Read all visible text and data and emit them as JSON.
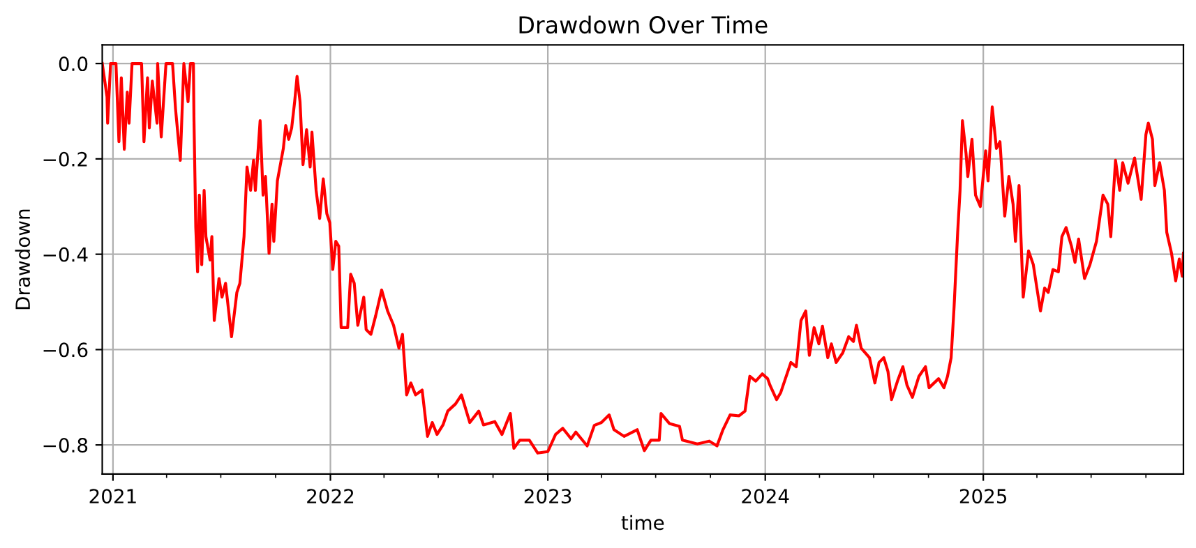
{
  "chart_data": {
    "type": "line",
    "title": "Drawdown Over Time",
    "xlabel": "time",
    "ylabel": "Drawdown",
    "x": [
      "2020-12-14",
      "2020-12-22",
      "2020-12-23",
      "2020-12-28",
      "2021-01-06",
      "2021-01-11",
      "2021-01-15",
      "2021-01-20",
      "2021-01-25",
      "2021-01-28",
      "2021-02-02",
      "2021-02-18",
      "2021-02-22",
      "2021-02-28",
      "2021-03-03",
      "2021-03-08",
      "2021-03-16",
      "2021-03-17",
      "2021-03-23",
      "2021-03-31",
      "2021-04-11",
      "2021-04-16",
      "2021-04-24",
      "2021-04-30",
      "2021-05-07",
      "2021-05-11",
      "2021-05-16",
      "2021-05-17",
      "2021-05-20",
      "2021-05-23",
      "2021-05-26",
      "2021-05-30",
      "2021-06-03",
      "2021-06-06",
      "2021-06-13",
      "2021-06-16",
      "2021-06-20",
      "2021-06-28",
      "2021-07-03",
      "2021-07-09",
      "2021-07-19",
      "2021-07-28",
      "2021-08-02",
      "2021-08-09",
      "2021-08-14",
      "2021-08-20",
      "2021-08-25",
      "2021-08-28",
      "2021-09-05",
      "2021-09-10",
      "2021-09-14",
      "2021-09-20",
      "2021-09-25",
      "2021-09-28",
      "2021-10-04",
      "2021-10-14",
      "2021-10-18",
      "2021-10-23",
      "2021-10-28",
      "2021-11-02",
      "2021-11-06",
      "2021-11-11",
      "2021-11-16",
      "2021-11-22",
      "2021-11-28",
      "2021-12-01",
      "2021-12-08",
      "2021-12-14",
      "2021-12-20",
      "2021-12-26",
      "2021-12-31",
      "2022-01-05",
      "2022-01-10",
      "2022-01-15",
      "2022-01-19",
      "2022-01-30",
      "2022-02-04",
      "2022-02-10",
      "2022-02-16",
      "2022-02-26",
      "2022-03-02",
      "2022-03-10",
      "2022-03-18",
      "2022-03-28",
      "2022-04-07",
      "2022-04-17",
      "2022-04-26",
      "2022-05-02",
      "2022-05-09",
      "2022-05-16",
      "2022-05-24",
      "2022-06-04",
      "2022-06-13",
      "2022-06-21",
      "2022-06-29",
      "2022-07-09",
      "2022-07-17",
      "2022-07-30",
      "2022-08-09",
      "2022-08-23",
      "2022-09-07",
      "2022-09-15",
      "2022-10-04",
      "2022-10-16",
      "2022-10-30",
      "2022-11-05",
      "2022-11-15",
      "2022-12-01",
      "2022-12-15",
      "2023-01-01",
      "2023-01-14",
      "2023-01-26",
      "2023-02-09",
      "2023-02-17",
      "2023-03-08",
      "2023-03-20",
      "2023-04-01",
      "2023-04-14",
      "2023-04-22",
      "2023-05-09",
      "2023-05-31",
      "2023-06-12",
      "2023-06-23",
      "2023-07-07",
      "2023-07-10",
      "2023-07-24",
      "2023-08-10",
      "2023-08-15",
      "2023-09-09",
      "2023-09-29",
      "2023-10-12",
      "2023-10-22",
      "2023-11-03",
      "2023-11-18",
      "2023-11-28",
      "2023-12-06",
      "2023-12-16",
      "2023-12-27",
      "2024-01-05",
      "2024-01-09",
      "2024-01-20",
      "2024-01-27",
      "2024-02-13",
      "2024-02-22",
      "2024-03-01",
      "2024-03-09",
      "2024-03-15",
      "2024-03-23",
      "2024-03-31",
      "2024-04-06",
      "2024-04-15",
      "2024-04-21",
      "2024-04-29",
      "2024-05-10",
      "2024-05-20",
      "2024-05-28",
      "2024-06-02",
      "2024-06-10",
      "2024-06-24",
      "2024-07-03",
      "2024-07-10",
      "2024-07-18",
      "2024-07-25",
      "2024-07-31",
      "2024-08-10",
      "2024-08-19",
      "2024-08-26",
      "2024-09-04",
      "2024-09-15",
      "2024-09-26",
      "2024-10-02",
      "2024-10-18",
      "2024-10-27",
      "2024-11-02",
      "2024-11-08",
      "2024-11-13",
      "2024-11-19",
      "2024-11-23",
      "2024-11-27",
      "2024-12-03",
      "2024-12-06",
      "2024-12-13",
      "2024-12-19",
      "2024-12-27",
      "2025-01-05",
      "2025-01-09",
      "2025-01-16",
      "2025-01-23",
      "2025-01-29",
      "2025-02-06",
      "2025-02-13",
      "2025-02-20",
      "2025-02-24",
      "2025-03-02",
      "2025-03-09",
      "2025-03-18",
      "2025-03-26",
      "2025-04-01",
      "2025-04-07",
      "2025-04-14",
      "2025-04-20",
      "2025-04-28",
      "2025-05-07",
      "2025-05-13",
      "2025-05-20",
      "2025-05-29",
      "2025-06-04",
      "2025-06-10",
      "2025-06-20",
      "2025-06-29",
      "2025-07-10",
      "2025-07-21",
      "2025-07-29",
      "2025-08-03",
      "2025-08-11",
      "2025-08-18",
      "2025-08-23",
      "2025-09-01",
      "2025-09-12",
      "2025-09-23",
      "2025-10-01",
      "2025-10-05",
      "2025-10-12",
      "2025-10-16",
      "2025-10-24",
      "2025-11-01",
      "2025-11-05",
      "2025-11-13",
      "2025-11-20",
      "2025-11-26",
      "2025-12-01",
      "2025-12-03"
    ],
    "series": [
      {
        "color": "#ff0000",
        "values": [
          0.0,
          -0.07,
          -0.125,
          0.0,
          0.0,
          -0.164,
          -0.03,
          -0.18,
          -0.06,
          -0.125,
          0.0,
          0.0,
          -0.164,
          -0.03,
          -0.135,
          -0.037,
          -0.125,
          0.0,
          -0.154,
          0.0,
          0.0,
          -0.095,
          -0.203,
          0.0,
          -0.08,
          0.0,
          0.0,
          -0.12,
          -0.344,
          -0.437,
          -0.276,
          -0.422,
          -0.266,
          -0.363,
          -0.412,
          -0.363,
          -0.539,
          -0.451,
          -0.49,
          -0.461,
          -0.573,
          -0.48,
          -0.461,
          -0.363,
          -0.217,
          -0.266,
          -0.203,
          -0.266,
          -0.12,
          -0.276,
          -0.237,
          -0.398,
          -0.295,
          -0.373,
          -0.246,
          -0.178,
          -0.13,
          -0.159,
          -0.135,
          -0.08,
          -0.027,
          -0.08,
          -0.212,
          -0.139,
          -0.217,
          -0.144,
          -0.266,
          -0.325,
          -0.242,
          -0.315,
          -0.334,
          -0.432,
          -0.373,
          -0.383,
          -0.554,
          -0.554,
          -0.442,
          -0.461,
          -0.549,
          -0.49,
          -0.558,
          -0.568,
          -0.529,
          -0.475,
          -0.519,
          -0.549,
          -0.597,
          -0.568,
          -0.695,
          -0.67,
          -0.695,
          -0.685,
          -0.782,
          -0.753,
          -0.778,
          -0.758,
          -0.729,
          -0.714,
          -0.695,
          -0.753,
          -0.729,
          -0.758,
          -0.751,
          -0.778,
          -0.734,
          -0.807,
          -0.79,
          -0.79,
          -0.817,
          -0.814,
          -0.778,
          -0.765,
          -0.787,
          -0.773,
          -0.802,
          -0.759,
          -0.753,
          -0.737,
          -0.768,
          -0.782,
          -0.768,
          -0.812,
          -0.79,
          -0.79,
          -0.734,
          -0.755,
          -0.761,
          -0.79,
          -0.798,
          -0.792,
          -0.802,
          -0.768,
          -0.737,
          -0.739,
          -0.729,
          -0.656,
          -0.666,
          -0.651,
          -0.661,
          -0.675,
          -0.705,
          -0.69,
          -0.627,
          -0.636,
          -0.539,
          -0.519,
          -0.612,
          -0.554,
          -0.588,
          -0.551,
          -0.617,
          -0.588,
          -0.627,
          -0.607,
          -0.573,
          -0.583,
          -0.549,
          -0.597,
          -0.617,
          -0.67,
          -0.627,
          -0.617,
          -0.646,
          -0.705,
          -0.666,
          -0.636,
          -0.675,
          -0.7,
          -0.656,
          -0.636,
          -0.68,
          -0.661,
          -0.68,
          -0.656,
          -0.617,
          -0.51,
          -0.354,
          -0.266,
          -0.12,
          -0.188,
          -0.237,
          -0.159,
          -0.276,
          -0.3,
          -0.183,
          -0.246,
          -0.091,
          -0.178,
          -0.164,
          -0.32,
          -0.237,
          -0.295,
          -0.373,
          -0.256,
          -0.49,
          -0.393,
          -0.422,
          -0.471,
          -0.519,
          -0.471,
          -0.48,
          -0.432,
          -0.437,
          -0.363,
          -0.344,
          -0.383,
          -0.417,
          -0.368,
          -0.451,
          -0.422,
          -0.373,
          -0.276,
          -0.295,
          -0.363,
          -0.203,
          -0.266,
          -0.208,
          -0.251,
          -0.198,
          -0.285,
          -0.149,
          -0.125,
          -0.159,
          -0.256,
          -0.208,
          -0.266,
          -0.354,
          -0.398,
          -0.456,
          -0.41,
          -0.446,
          -0.398
        ]
      }
    ],
    "xlim": [
      "2020-12-14",
      "2025-12-03"
    ],
    "xticks": [
      {
        "value": "2021-01-01",
        "label": "2021"
      },
      {
        "value": "2021-04-01",
        "label": null
      },
      {
        "value": "2021-07-01",
        "label": null
      },
      {
        "value": "2021-10-01",
        "label": null
      },
      {
        "value": "2022-01-01",
        "label": "2022"
      },
      {
        "value": "2022-04-01",
        "label": null
      },
      {
        "value": "2022-07-01",
        "label": null
      },
      {
        "value": "2022-10-01",
        "label": null
      },
      {
        "value": "2023-01-01",
        "label": "2023"
      },
      {
        "value": "2023-04-01",
        "label": null
      },
      {
        "value": "2023-07-01",
        "label": null
      },
      {
        "value": "2023-10-01",
        "label": null
      },
      {
        "value": "2024-01-01",
        "label": "2024"
      },
      {
        "value": "2024-04-01",
        "label": null
      },
      {
        "value": "2024-07-01",
        "label": null
      },
      {
        "value": "2024-10-01",
        "label": null
      },
      {
        "value": "2025-01-01",
        "label": "2025"
      },
      {
        "value": "2025-04-01",
        "label": null
      },
      {
        "value": "2025-07-01",
        "label": null
      },
      {
        "value": "2025-10-01",
        "label": null
      }
    ],
    "ylim": [
      -0.861,
      0.039
    ],
    "yticks": [
      {
        "value": -0.8,
        "label": "−0.8"
      },
      {
        "value": -0.6,
        "label": "−0.6"
      },
      {
        "value": -0.4,
        "label": "−0.4"
      },
      {
        "value": -0.2,
        "label": "−0.2"
      },
      {
        "value": 0.0,
        "label": "0.0"
      }
    ],
    "grid": true,
    "line_style": "solid"
  }
}
